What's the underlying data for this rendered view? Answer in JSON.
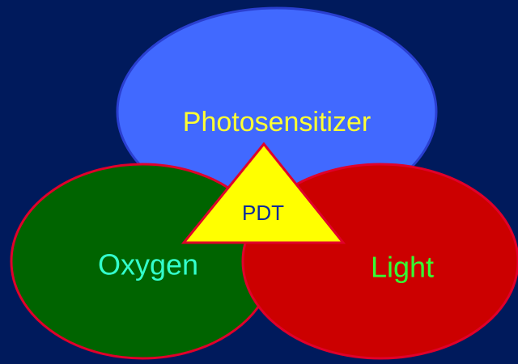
{
  "nodes": [
    {
      "label": "Photosensitizer"
    },
    {
      "label": "Oxygen"
    },
    {
      "label": "Light"
    }
  ],
  "center": {
    "label": "PDT"
  }
}
